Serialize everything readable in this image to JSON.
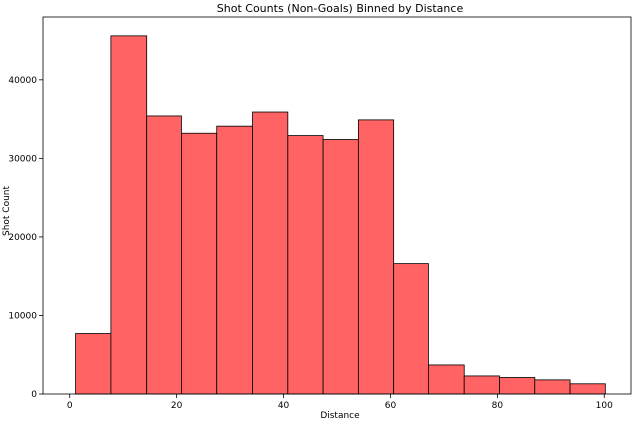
{
  "chart_data": {
    "type": "bar",
    "title": "Shot Counts (Non-Goals) Binned by Distance",
    "xlabel": "Distance",
    "ylabel": "Shot Count",
    "xlim": [
      -5,
      105
    ],
    "ylim": [
      0,
      48000
    ],
    "xticks": [
      0,
      20,
      40,
      60,
      80,
      100
    ],
    "yticks": [
      0,
      10000,
      20000,
      30000,
      40000
    ],
    "bin_edges": [
      1.1,
      7.7,
      14.4,
      20.9,
      27.5,
      34.2,
      40.8,
      47.4,
      54.0,
      60.6,
      67.1,
      73.8,
      80.4,
      87.0,
      93.6,
      100.2
    ],
    "values": [
      7700,
      45600,
      35400,
      33200,
      34100,
      35900,
      32900,
      32400,
      34900,
      16600,
      3700,
      2300,
      2100,
      1800,
      1300
    ],
    "grid": false,
    "color": "#ff6363"
  }
}
